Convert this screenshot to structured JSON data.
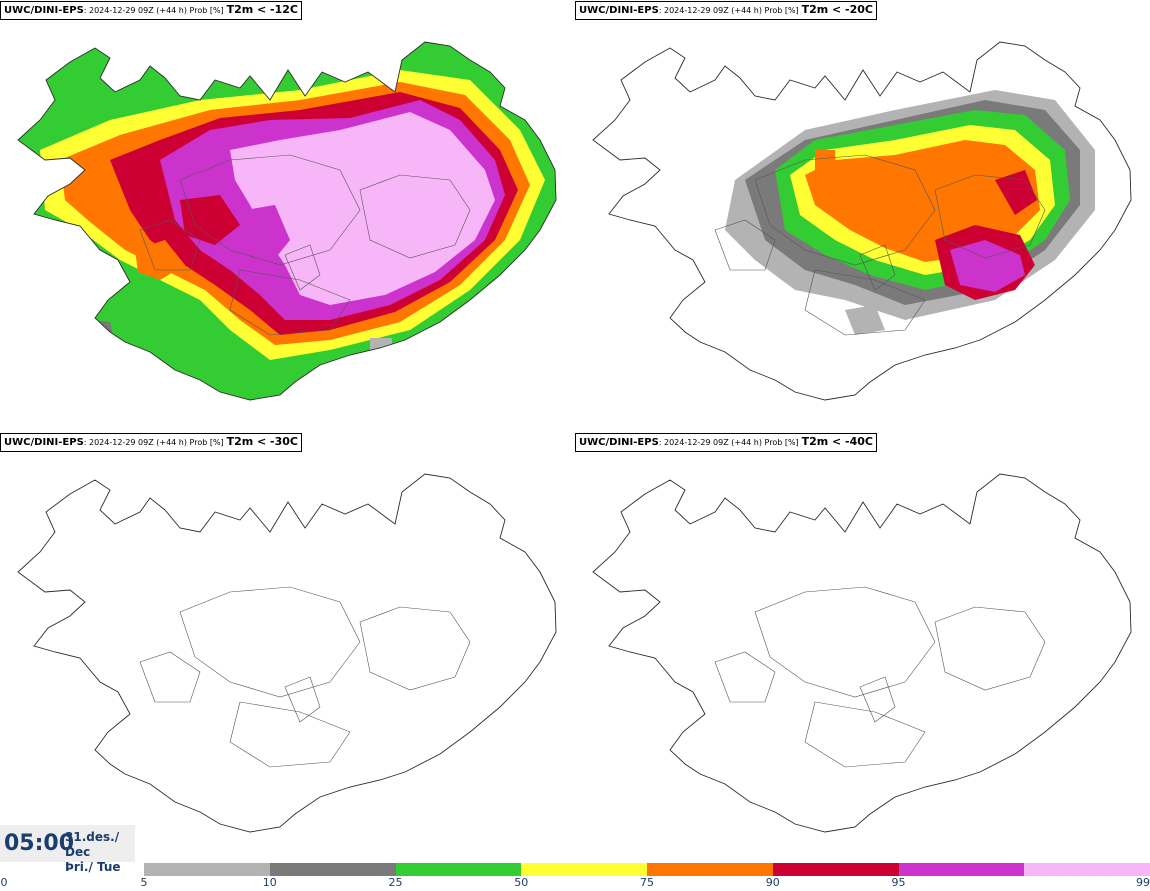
{
  "panels": [
    {
      "id": "lt12",
      "source": "UWC/DINI-EPS",
      "meta": ": 2024-12-29 09Z (+44 h) Prob [%]",
      "threshold": "T2m < -12C",
      "fill_level": "high"
    },
    {
      "id": "lt20",
      "source": "UWC/DINI-EPS",
      "meta": ": 2024-12-29 09Z (+44 h) Prob [%]",
      "threshold": "T2m < -20C",
      "fill_level": "medium"
    },
    {
      "id": "lt30",
      "source": "UWC/DINI-EPS",
      "meta": ": 2024-12-29 09Z (+44 h) Prob [%]",
      "threshold": "T2m < -30C",
      "fill_level": "none"
    },
    {
      "id": "lt40",
      "source": "UWC/DINI-EPS",
      "meta": ": 2024-12-29 09Z (+44 h) Prob [%]",
      "threshold": "T2m < -40C",
      "fill_level": "none"
    }
  ],
  "valid_time": {
    "time": "05:00",
    "date_line": "31.des./ Dec",
    "day_line": "Þri./ Tue"
  },
  "colorbar": {
    "labels": [
      "0",
      "5",
      "10",
      "25",
      "50",
      "75",
      "90",
      "95",
      "99"
    ],
    "colors": [
      "#b3b3b3",
      "#7a7a7a",
      "#33cc33",
      "#ffff33",
      "#ff7700",
      "#cc0033",
      "#cc33cc",
      "#f7b6f7"
    ]
  }
}
